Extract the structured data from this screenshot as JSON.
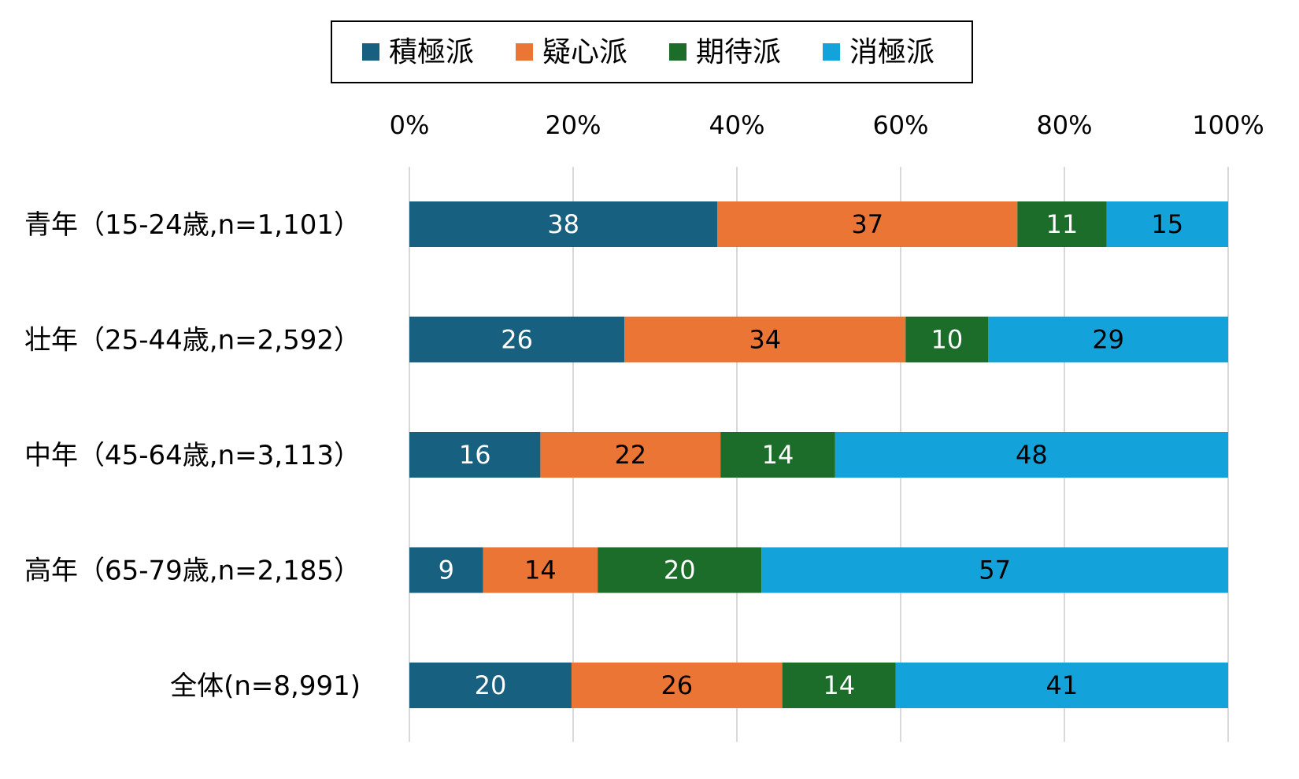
{
  "chart_data": {
    "type": "bar",
    "orientation": "horizontal",
    "stacked": true,
    "legend_position": "top",
    "grid": "vertical",
    "xlim": [
      0,
      100
    ],
    "x_ticks": [
      "0%",
      "20%",
      "40%",
      "60%",
      "80%",
      "100%"
    ],
    "x_tick_values": [
      0,
      20,
      40,
      60,
      80,
      100
    ],
    "categories": [
      "青年（15-24歳,n=1,101）",
      "壮年（25-44歳,n=2,592）",
      "中年（45-64歳,n=3,113）",
      "高年（65-79歳,n=2,185）",
      "全体(n=8,991)"
    ],
    "series": [
      {
        "name": "積極派",
        "color": "#17607f",
        "label_color": "#ffffff",
        "values": [
          38,
          26,
          16,
          9,
          20
        ]
      },
      {
        "name": "疑心派",
        "color": "#eb7535",
        "label_color": "#000000",
        "values": [
          37,
          34,
          22,
          14,
          26
        ]
      },
      {
        "name": "期待派",
        "color": "#1d6d2a",
        "label_color": "#ffffff",
        "values": [
          11,
          10,
          14,
          20,
          14
        ]
      },
      {
        "name": "消極派",
        "color": "#13a2d9",
        "label_color": "#000000",
        "values": [
          15,
          29,
          48,
          57,
          41
        ]
      }
    ]
  }
}
